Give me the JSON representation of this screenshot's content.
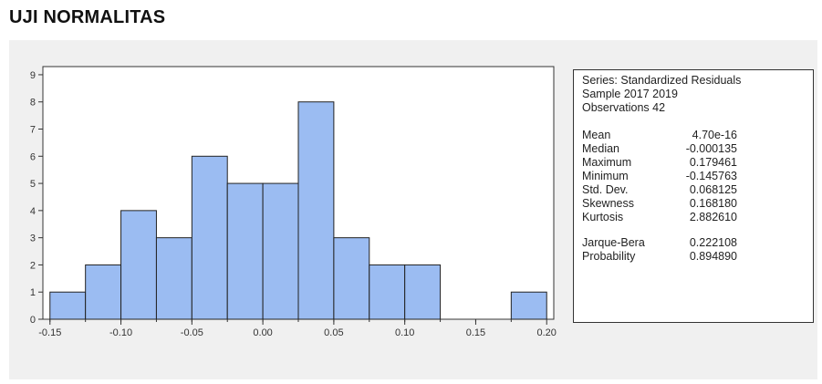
{
  "page": {
    "title": "UJI NORMALITAS"
  },
  "chart_data": {
    "type": "bar",
    "title": "",
    "xlabel": "",
    "ylabel": "",
    "bin_width": 0.025,
    "bins": [
      {
        "from": -0.15,
        "to": -0.125,
        "count": 1
      },
      {
        "from": -0.125,
        "to": -0.1,
        "count": 2
      },
      {
        "from": -0.1,
        "to": -0.075,
        "count": 4
      },
      {
        "from": -0.075,
        "to": -0.05,
        "count": 3
      },
      {
        "from": -0.05,
        "to": -0.025,
        "count": 6
      },
      {
        "from": -0.025,
        "to": 0.0,
        "count": 5
      },
      {
        "from": 0.0,
        "to": 0.025,
        "count": 5
      },
      {
        "from": 0.025,
        "to": 0.05,
        "count": 8
      },
      {
        "from": 0.05,
        "to": 0.075,
        "count": 3
      },
      {
        "from": 0.075,
        "to": 0.1,
        "count": 2
      },
      {
        "from": 0.1,
        "to": 0.125,
        "count": 2
      },
      {
        "from": 0.125,
        "to": 0.15,
        "count": 0
      },
      {
        "from": 0.15,
        "to": 0.175,
        "count": 0
      },
      {
        "from": 0.175,
        "to": 0.2,
        "count": 1
      }
    ],
    "xlim": [
      -0.155,
      0.205
    ],
    "ylim": [
      0,
      9.3
    ],
    "x_ticks": [
      {
        "value": -0.15,
        "label": "-0.15"
      },
      {
        "value": -0.1,
        "label": "-0.10"
      },
      {
        "value": -0.05,
        "label": "-0.05"
      },
      {
        "value": 0.0,
        "label": "0.00"
      },
      {
        "value": 0.05,
        "label": "0.05"
      },
      {
        "value": 0.1,
        "label": "0.10"
      },
      {
        "value": 0.15,
        "label": "0.15"
      },
      {
        "value": 0.2,
        "label": "0.20"
      }
    ],
    "y_ticks": [
      {
        "value": 0,
        "label": "0"
      },
      {
        "value": 1,
        "label": "1"
      },
      {
        "value": 2,
        "label": "2"
      },
      {
        "value": 3,
        "label": "3"
      },
      {
        "value": 4,
        "label": "4"
      },
      {
        "value": 5,
        "label": "5"
      },
      {
        "value": 6,
        "label": "6"
      },
      {
        "value": 7,
        "label": "7"
      },
      {
        "value": 8,
        "label": "8"
      },
      {
        "value": 9,
        "label": "9"
      }
    ],
    "grid": false,
    "legend": "none",
    "bar_color": "#9bbcf2",
    "bar_edge_color": "#222222"
  },
  "stats": {
    "series": "Series: Standardized Residuals",
    "sample": "Sample 2017 2019",
    "observations": "Observations 42",
    "rows": [
      {
        "label": "Mean",
        "value": "4.70e-16"
      },
      {
        "label": "Median",
        "value": "-0.000135"
      },
      {
        "label": "Maximum",
        "value": "0.179461"
      },
      {
        "label": "Minimum",
        "value": "-0.145763"
      },
      {
        "label": "Std. Dev.",
        "value": "0.068125"
      },
      {
        "label": "Skewness",
        "value": "0.168180"
      },
      {
        "label": "Kurtosis",
        "value": "2.882610"
      }
    ],
    "test_rows": [
      {
        "label": "Jarque-Bera",
        "value": "0.222108"
      },
      {
        "label": "Probability",
        "value": "0.894890"
      }
    ]
  }
}
